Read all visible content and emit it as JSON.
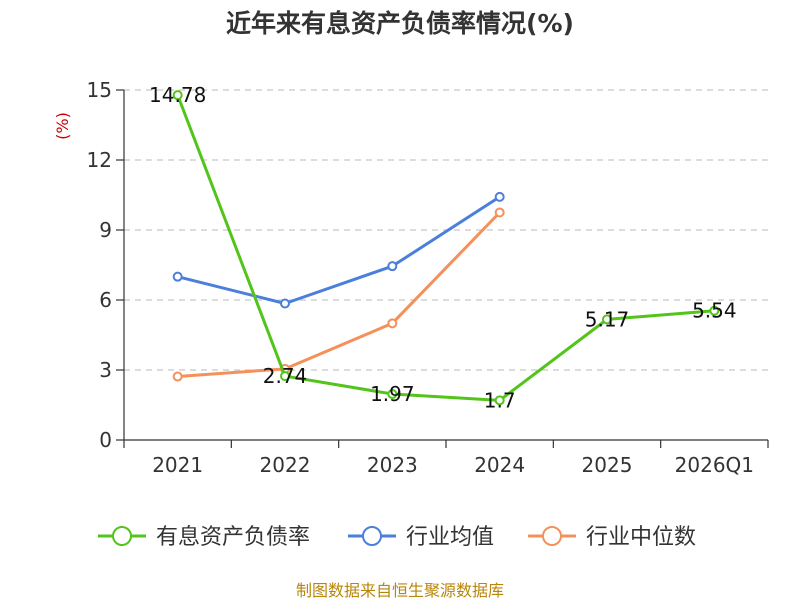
{
  "chart_data": {
    "type": "line",
    "title": "近年来有息资产负债率情况(%)",
    "ylabel": "(%)",
    "categories": [
      "2021",
      "2022",
      "2023",
      "2024",
      "2025",
      "2026Q1"
    ],
    "ylim": [
      0,
      15
    ],
    "yticks": [
      0,
      3,
      6,
      9,
      12,
      15
    ],
    "grid": true,
    "legend_position": "bottom",
    "series": [
      {
        "name": "有息资产负债率",
        "color": "#52c41a",
        "values": [
          14.78,
          2.74,
          1.97,
          1.7,
          5.17,
          5.54
        ],
        "labels": [
          "14.78",
          "2.74",
          "1.97",
          "1.7",
          "5.17",
          "5.54"
        ]
      },
      {
        "name": "行业均值",
        "color": "#4a7fdb",
        "values": [
          7.0,
          5.85,
          7.45,
          10.42,
          null,
          null
        ]
      },
      {
        "name": "行业中位数",
        "color": "#f5905a",
        "values": [
          2.72,
          3.05,
          5.0,
          9.75,
          null,
          null
        ]
      }
    ]
  },
  "source_text": "制图数据来自恒生聚源数据库"
}
